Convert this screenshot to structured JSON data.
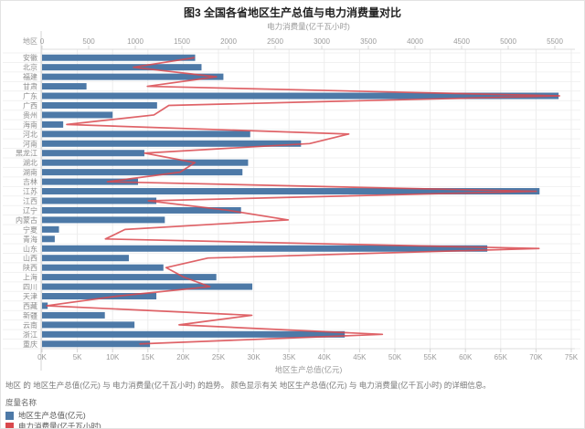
{
  "title": "图3  全国各省地区生产总值与电力消费量对比",
  "caption": "地区 的 地区生产总值(亿元) 与 电力消费量(亿千瓦小时) 的趋势。  颜色显示有关 地区生产总值(亿元) 与 电力消费量(亿千瓦小时) 的详细信息。",
  "legend": {
    "title": "度量名称",
    "items": [
      {
        "label": "地区生产总值(亿元)",
        "color": "#4d79a7"
      },
      {
        "label": "电力消费量(亿千瓦小时)",
        "color": "#d9484d"
      }
    ]
  },
  "chart_data": {
    "type": "bar",
    "subtype": "horizontal-bars-with-dual-axis-line",
    "title": "图3  全国各省地区生产总值与电力消费量对比",
    "y_header": "地区",
    "top_axis": {
      "label": "电力消费量(亿千瓦小时)",
      "ticks": [
        0,
        500,
        1000,
        1500,
        2000,
        2500,
        3000,
        3500,
        4000,
        4500,
        5000,
        5500
      ],
      "max": 5715
    },
    "bottom_axis": {
      "label": "地区生产总值(亿元)",
      "tick_labels": [
        "0K",
        "5K",
        "10K",
        "15K",
        "20K",
        "25K",
        "30K",
        "35K",
        "40K",
        "45K",
        "50K",
        "55K",
        "60K",
        "65K",
        "70K",
        "75K"
      ],
      "tick_values": [
        0,
        5000,
        10000,
        15000,
        20000,
        25000,
        30000,
        35000,
        40000,
        45000,
        50000,
        55000,
        60000,
        65000,
        70000,
        75000
      ],
      "max": 75500
    },
    "categories": [
      "安徽",
      "北京",
      "福建",
      "甘肃",
      "广东",
      "广西",
      "贵州",
      "海南",
      "河北",
      "河南",
      "黑龙江",
      "湖北",
      "湖南",
      "吉林",
      "江苏",
      "江西",
      "辽宁",
      "内蒙古",
      "宁夏",
      "青海",
      "山东",
      "山西",
      "陕西",
      "上海",
      "四川",
      "天津",
      "西藏",
      "新疆",
      "云南",
      "浙江",
      "重庆"
    ],
    "series": [
      {
        "name": "地区生产总值(亿元)",
        "type": "bar",
        "axis": "bottom",
        "color": "#4d79a7",
        "values": [
          21700,
          22600,
          25700,
          6300,
          73200,
          16300,
          10000,
          3000,
          29500,
          36700,
          14500,
          29200,
          28400,
          13600,
          70500,
          16200,
          28200,
          17400,
          2400,
          1800,
          63100,
          12300,
          17200,
          24700,
          29800,
          16200,
          800,
          8900,
          13100,
          42900,
          15300
        ]
      },
      {
        "name": "电力消费量(亿千瓦小时)",
        "type": "line",
        "axis": "top",
        "color": "#d9484d",
        "values": [
          1630,
          980,
          1870,
          1130,
          5550,
          1360,
          1200,
          265,
          3290,
          2870,
          1100,
          1640,
          1480,
          700,
          5300,
          1140,
          2000,
          2640,
          890,
          680,
          5330,
          1780,
          1330,
          1520,
          1800,
          800,
          50,
          2250,
          1470,
          3650,
          1050
        ]
      }
    ],
    "grid": "light vertical lines at bottom-axis ticks, light horizontal row separators",
    "legend_position": "bottom-left"
  }
}
